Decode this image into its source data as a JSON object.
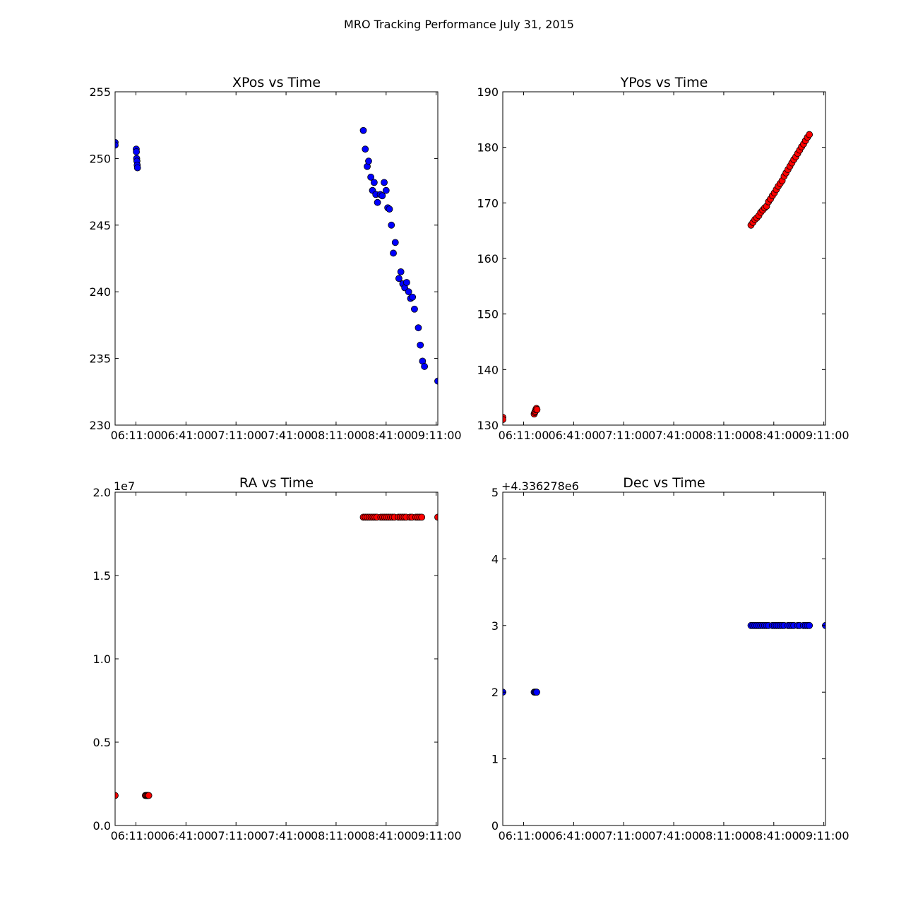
{
  "figure": {
    "suptitle": "MRO Tracking Performance July 31, 2015"
  },
  "chart_data": [
    {
      "type": "scatter",
      "title": "XPos vs Time",
      "xlabel": "",
      "ylabel": "",
      "x_axis": "time",
      "xlim": [
        "05:58:30",
        "09:12:00"
      ],
      "x_ticks": [
        "06:11:00",
        "06:41:00",
        "07:11:00",
        "07:41:00",
        "08:11:00",
        "08:41:00",
        "09:11:00"
      ],
      "ylim": [
        230,
        255
      ],
      "y_ticks": [
        "230",
        "235",
        "240",
        "245",
        "250",
        "255"
      ],
      "offset_text": "",
      "marker_color": "#0000ff",
      "grid": false,
      "points": [
        [
          "05:58:30",
          251.2
        ],
        [
          "05:58:30",
          251.0
        ],
        [
          "06:11:10",
          250.7
        ],
        [
          "06:11:15",
          250.5
        ],
        [
          "06:11:25",
          250.0
        ],
        [
          "06:11:35",
          249.8
        ],
        [
          "06:11:45",
          249.5
        ],
        [
          "06:11:55",
          249.3
        ],
        [
          "08:27:20",
          252.1
        ],
        [
          "08:28:30",
          250.7
        ],
        [
          "08:29:40",
          249.4
        ],
        [
          "08:30:30",
          249.8
        ],
        [
          "08:31:50",
          248.6
        ],
        [
          "08:32:50",
          247.6
        ],
        [
          "08:33:50",
          248.2
        ],
        [
          "08:34:50",
          247.3
        ],
        [
          "08:35:50",
          246.7
        ],
        [
          "08:37:30",
          247.3
        ],
        [
          "08:38:40",
          247.2
        ],
        [
          "08:39:50",
          248.2
        ],
        [
          "08:41:00",
          247.6
        ],
        [
          "08:42:00",
          246.3
        ],
        [
          "08:43:00",
          246.2
        ],
        [
          "08:44:10",
          245.0
        ],
        [
          "08:45:20",
          242.9
        ],
        [
          "08:46:30",
          243.7
        ],
        [
          "08:48:40",
          241.0
        ],
        [
          "08:49:50",
          241.5
        ],
        [
          "08:51:00",
          240.6
        ],
        [
          "08:52:10",
          240.3
        ],
        [
          "08:53:20",
          240.7
        ],
        [
          "08:54:30",
          240.0
        ],
        [
          "08:55:40",
          239.5
        ],
        [
          "08:56:50",
          239.6
        ],
        [
          "08:58:00",
          238.7
        ],
        [
          "09:00:20",
          237.3
        ],
        [
          "09:01:30",
          236.0
        ],
        [
          "09:02:50",
          234.8
        ],
        [
          "09:04:00",
          234.4
        ],
        [
          "09:12:00",
          233.3
        ]
      ]
    },
    {
      "type": "scatter",
      "title": "YPos vs Time",
      "xlabel": "",
      "ylabel": "",
      "x_axis": "time",
      "xlim": [
        "05:58:30",
        "09:12:00"
      ],
      "x_ticks": [
        "06:11:00",
        "06:41:00",
        "07:11:00",
        "07:41:00",
        "08:11:00",
        "08:41:00",
        "09:11:00"
      ],
      "ylim": [
        130,
        190
      ],
      "y_ticks": [
        "130",
        "140",
        "150",
        "160",
        "170",
        "180",
        "190"
      ],
      "offset_text": "",
      "marker_color": "#ff0000",
      "grid": false,
      "points": [
        [
          "05:58:30",
          131.4
        ],
        [
          "05:58:30",
          131.0
        ],
        [
          "06:17:20",
          132.0
        ],
        [
          "06:17:40",
          132.3
        ],
        [
          "06:18:00",
          132.5
        ],
        [
          "06:18:20",
          132.8
        ],
        [
          "06:18:40",
          133.0
        ],
        [
          "06:19:00",
          132.8
        ],
        [
          "08:27:20",
          166.0
        ],
        [
          "08:28:30",
          166.5
        ],
        [
          "08:29:40",
          167.0
        ],
        [
          "08:30:50",
          167.3
        ],
        [
          "08:32:00",
          167.7
        ],
        [
          "08:33:10",
          168.3
        ],
        [
          "08:34:20",
          168.7
        ],
        [
          "08:35:30",
          169.1
        ],
        [
          "08:36:40",
          169.4
        ],
        [
          "08:37:50",
          170.2
        ],
        [
          "08:39:00",
          170.7
        ],
        [
          "08:40:10",
          171.3
        ],
        [
          "08:41:20",
          171.8
        ],
        [
          "08:42:30",
          172.4
        ],
        [
          "08:43:40",
          173.0
        ],
        [
          "08:44:50",
          173.5
        ],
        [
          "08:46:00",
          174.0
        ],
        [
          "08:47:10",
          174.8
        ],
        [
          "08:48:20",
          175.4
        ],
        [
          "08:49:30",
          176.0
        ],
        [
          "08:50:40",
          176.6
        ],
        [
          "08:51:50",
          177.2
        ],
        [
          "08:53:00",
          177.8
        ],
        [
          "08:54:10",
          178.3
        ],
        [
          "08:55:20",
          178.9
        ],
        [
          "08:56:30",
          179.5
        ],
        [
          "08:57:40",
          180.1
        ],
        [
          "08:58:50",
          180.6
        ],
        [
          "09:00:00",
          181.2
        ],
        [
          "09:01:10",
          181.8
        ],
        [
          "09:02:20",
          182.3
        ]
      ]
    },
    {
      "type": "scatter",
      "title": "RA vs Time",
      "xlabel": "",
      "ylabel": "",
      "x_axis": "time",
      "xlim": [
        "05:58:30",
        "09:12:00"
      ],
      "x_ticks": [
        "06:11:00",
        "06:41:00",
        "07:11:00",
        "07:41:00",
        "08:11:00",
        "08:41:00",
        "09:11:00"
      ],
      "ylim": [
        0,
        2.0
      ],
      "y_ticks": [
        "0.0",
        "0.5",
        "1.0",
        "1.5",
        "2.0"
      ],
      "offset_text": "1e7",
      "marker_color": "#ff0000",
      "grid": false,
      "points": [
        [
          "05:58:30",
          0.18
        ],
        [
          "06:16:40",
          0.18
        ],
        [
          "06:17:10",
          0.18
        ],
        [
          "06:17:40",
          0.18
        ],
        [
          "06:18:10",
          0.18
        ],
        [
          "06:18:40",
          0.18
        ],
        [
          "08:27:20",
          1.85
        ],
        [
          "08:28:30",
          1.85
        ],
        [
          "08:29:40",
          1.85
        ],
        [
          "08:30:50",
          1.85
        ],
        [
          "08:32:00",
          1.85
        ],
        [
          "08:33:10",
          1.85
        ],
        [
          "08:34:20",
          1.85
        ],
        [
          "08:35:30",
          1.85
        ],
        [
          "08:37:50",
          1.85
        ],
        [
          "08:39:00",
          1.85
        ],
        [
          "08:40:10",
          1.85
        ],
        [
          "08:41:20",
          1.85
        ],
        [
          "08:42:30",
          1.85
        ],
        [
          "08:43:40",
          1.85
        ],
        [
          "08:44:50",
          1.85
        ],
        [
          "08:46:00",
          1.85
        ],
        [
          "08:48:20",
          1.85
        ],
        [
          "08:49:30",
          1.85
        ],
        [
          "08:50:40",
          1.85
        ],
        [
          "08:51:50",
          1.85
        ],
        [
          "08:53:00",
          1.85
        ],
        [
          "08:55:20",
          1.85
        ],
        [
          "08:56:30",
          1.85
        ],
        [
          "08:58:50",
          1.85
        ],
        [
          "09:00:00",
          1.85
        ],
        [
          "09:01:10",
          1.85
        ],
        [
          "09:02:20",
          1.85
        ],
        [
          "09:12:00",
          1.85
        ]
      ]
    },
    {
      "type": "scatter",
      "title": "Dec vs Time",
      "xlabel": "",
      "ylabel": "",
      "x_axis": "time",
      "xlim": [
        "05:58:30",
        "09:12:00"
      ],
      "x_ticks": [
        "06:11:00",
        "06:41:00",
        "07:11:00",
        "07:41:00",
        "08:11:00",
        "08:41:00",
        "09:11:00"
      ],
      "ylim": [
        0,
        5
      ],
      "y_ticks": [
        "0",
        "1",
        "2",
        "3",
        "4",
        "5"
      ],
      "offset_text": "+4.336278e6",
      "marker_color": "#0000ff",
      "grid": false,
      "points": [
        [
          "05:58:30",
          2
        ],
        [
          "06:17:20",
          2
        ],
        [
          "06:17:50",
          2
        ],
        [
          "06:18:20",
          2
        ],
        [
          "06:18:50",
          2
        ],
        [
          "08:27:20",
          3
        ],
        [
          "08:28:30",
          3
        ],
        [
          "08:29:40",
          3
        ],
        [
          "08:30:50",
          3
        ],
        [
          "08:32:00",
          3
        ],
        [
          "08:33:10",
          3
        ],
        [
          "08:34:20",
          3
        ],
        [
          "08:35:30",
          3
        ],
        [
          "08:36:40",
          3
        ],
        [
          "08:37:50",
          3
        ],
        [
          "08:40:10",
          3
        ],
        [
          "08:41:20",
          3
        ],
        [
          "08:42:30",
          3
        ],
        [
          "08:43:40",
          3
        ],
        [
          "08:44:50",
          3
        ],
        [
          "08:46:00",
          3
        ],
        [
          "08:47:10",
          3
        ],
        [
          "08:49:30",
          3
        ],
        [
          "08:50:40",
          3
        ],
        [
          "08:51:50",
          3
        ],
        [
          "08:53:00",
          3
        ],
        [
          "08:55:20",
          3
        ],
        [
          "08:56:30",
          3
        ],
        [
          "08:58:50",
          3
        ],
        [
          "09:00:00",
          3
        ],
        [
          "09:01:10",
          3
        ],
        [
          "09:02:20",
          3
        ],
        [
          "09:12:00",
          3
        ]
      ]
    }
  ]
}
